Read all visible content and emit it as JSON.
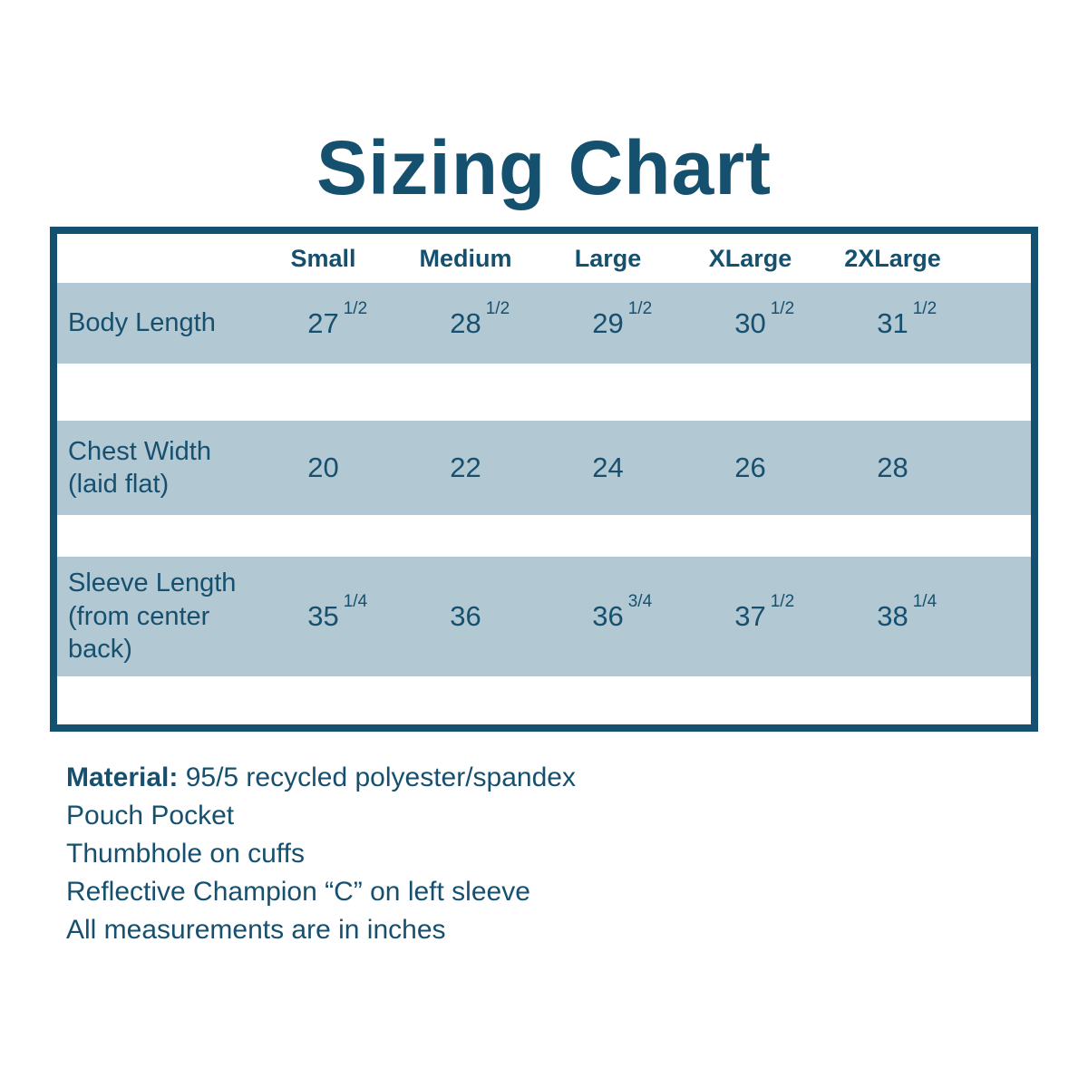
{
  "title": "Sizing Chart",
  "colors": {
    "accent_dark_teal": "#15506e",
    "table_border": "#14506f",
    "row_band": "#b2c8d3",
    "background": "#ffffff"
  },
  "table": {
    "columns": [
      "Small",
      "Medium",
      "Large",
      "XLarge",
      "2XLarge"
    ],
    "rows": [
      {
        "label": "Body Length",
        "values": [
          {
            "main": "27",
            "sup": "1/2"
          },
          {
            "main": "28",
            "sup": "1/2"
          },
          {
            "main": "29",
            "sup": "1/2"
          },
          {
            "main": "30",
            "sup": "1/2"
          },
          {
            "main": "31",
            "sup": "1/2"
          }
        ]
      },
      {
        "label": "Chest Width\n(laid flat)",
        "values": [
          {
            "main": "20",
            "sup": ""
          },
          {
            "main": "22",
            "sup": ""
          },
          {
            "main": "24",
            "sup": ""
          },
          {
            "main": "26",
            "sup": ""
          },
          {
            "main": "28",
            "sup": ""
          }
        ]
      },
      {
        "label": "Sleeve Length\n(from center\nback)",
        "values": [
          {
            "main": "35",
            "sup": "1/4"
          },
          {
            "main": "36",
            "sup": ""
          },
          {
            "main": "36",
            "sup": "3/4"
          },
          {
            "main": "37",
            "sup": "1/2"
          },
          {
            "main": "38",
            "sup": "1/4"
          }
        ]
      }
    ]
  },
  "notes": {
    "material_label": "Material:",
    "material_value": " 95/5 recycled polyester/spandex",
    "lines": [
      "Pouch Pocket",
      "Thumbhole on cuffs",
      "Reflective Champion “C” on left sleeve",
      "All measurements are in inches"
    ]
  },
  "chart_data": {
    "type": "table",
    "title": "Sizing Chart",
    "columns": [
      "",
      "Small",
      "Medium",
      "Large",
      "XLarge",
      "2XLarge"
    ],
    "rows": [
      [
        "Body Length",
        "27 1/2",
        "28 1/2",
        "29 1/2",
        "30 1/2",
        "31 1/2"
      ],
      [
        "Chest Width (laid flat)",
        "20",
        "22",
        "24",
        "26",
        "28"
      ],
      [
        "Sleeve Length (from center back)",
        "35 1/4",
        "36",
        "36 3/4",
        "37 1/2",
        "38 1/4"
      ]
    ],
    "units": "inches",
    "footnotes": [
      "Material: 95/5 recycled polyester/spandex",
      "Pouch Pocket",
      "Thumbhole on cuffs",
      "Reflective Champion “C” on left sleeve",
      "All measurements are in inches"
    ]
  }
}
